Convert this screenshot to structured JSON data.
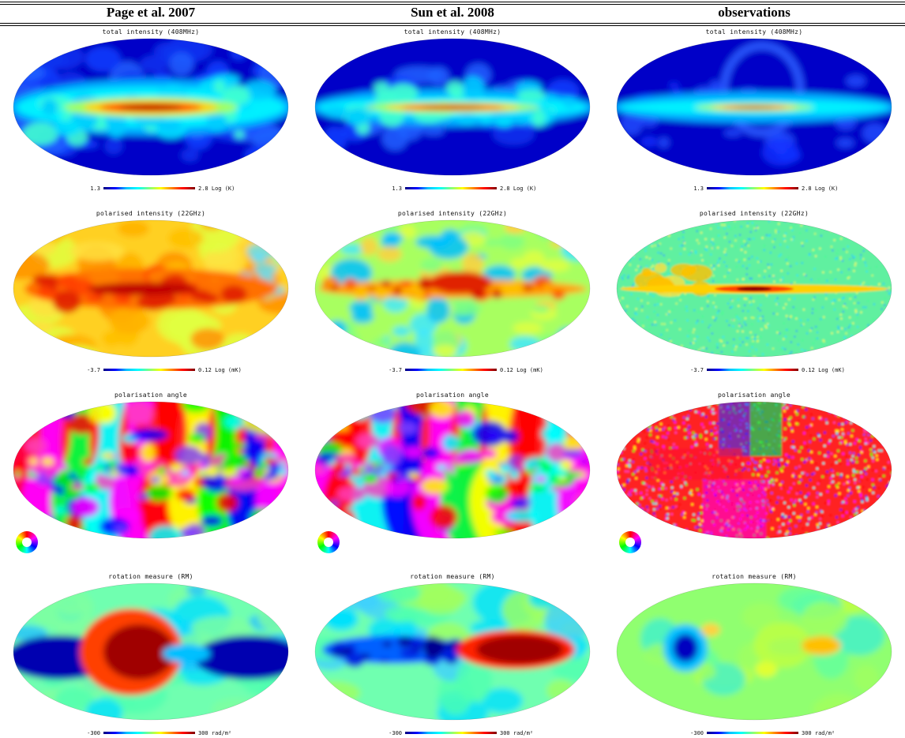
{
  "columns": [
    "Page et al. 2007",
    "Sun et al. 2008",
    "observations"
  ],
  "rows": [
    {
      "title": "total intensity (408MHz)",
      "colorbar": {
        "min": "1.3",
        "max": "2.8 Log (K)"
      },
      "wheel": false,
      "variants": [
        "ti-page",
        "ti-sun",
        "ti-obs"
      ]
    },
    {
      "title": "polarised intensity (22GHz)",
      "colorbar": {
        "min": "-3.7",
        "max": "0.12 Log (mK)"
      },
      "wheel": false,
      "variants": [
        "pi-page",
        "pi-sun",
        "pi-obs"
      ]
    },
    {
      "title": "polarisation angle",
      "colorbar": null,
      "wheel": true,
      "variants": [
        "pa-page",
        "pa-sun",
        "pa-obs"
      ]
    },
    {
      "title": "rotation measure (RM)",
      "colorbar": {
        "min": "-300",
        "max": "300 rad/m²"
      },
      "wheel": false,
      "variants": [
        "rm-page",
        "rm-sun",
        "rm-obs"
      ]
    }
  ]
}
